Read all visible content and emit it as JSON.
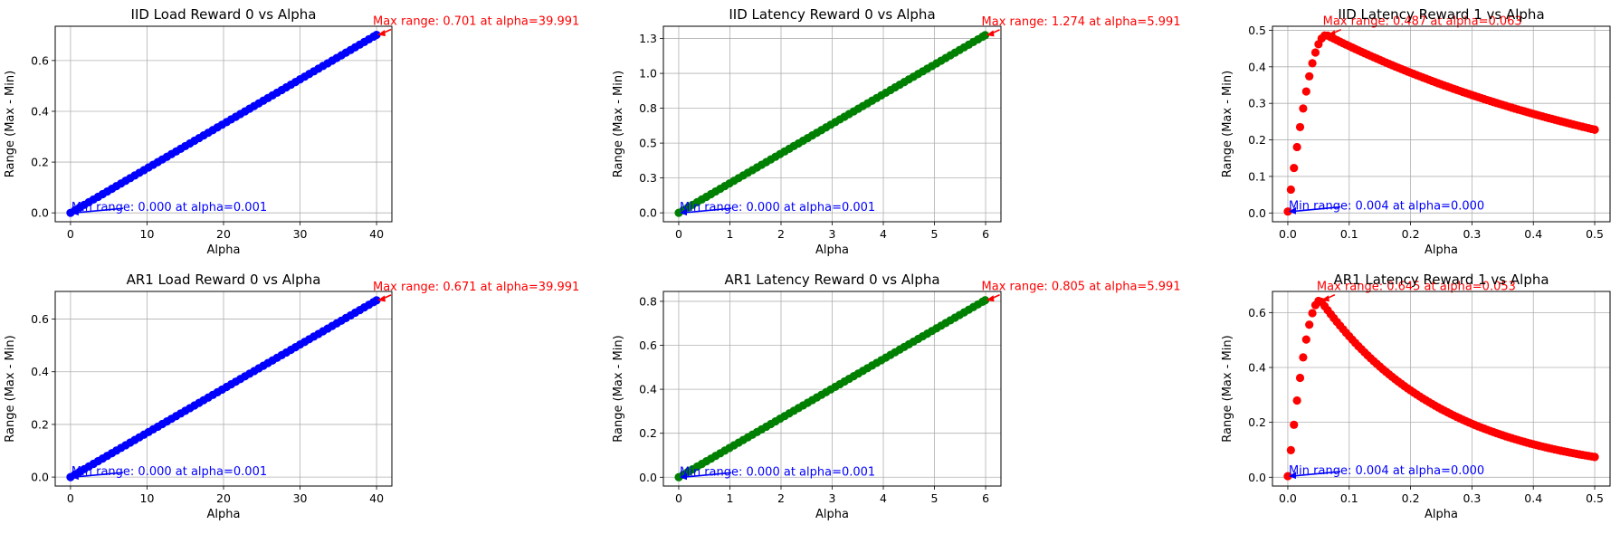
{
  "chart_data": [
    {
      "type": "scatter",
      "title": "IID Load Reward 0 vs Alpha",
      "xlabel": "Alpha",
      "ylabel": "Range (Max - Min)",
      "xlim": [
        -2,
        42
      ],
      "ylim": [
        -0.035,
        0.735
      ],
      "xticks": [
        0,
        10,
        20,
        30,
        40
      ],
      "yticks": [
        0.0,
        0.2,
        0.4,
        0.6
      ],
      "grid": true,
      "color": "#0000ff",
      "curve": "linear",
      "x_range": [
        0.001,
        39.991
      ],
      "y_end": 0.701,
      "point_step": 0.6,
      "max_annotation": {
        "text": "Max range: 0.701 at alpha=39.991",
        "x": 39.991,
        "y": 0.701,
        "color": "#ff0000"
      },
      "min_annotation": {
        "text": "Min range: 0.000 at alpha=0.001",
        "x": 0.001,
        "y": 0.0,
        "color": "#0000ff"
      }
    },
    {
      "type": "scatter",
      "title": "IID Latency Reward 0 vs Alpha",
      "xlabel": "Alpha",
      "ylabel": "Range (Max - Min)",
      "xlim": [
        -0.3,
        6.3
      ],
      "ylim": [
        -0.064,
        1.338
      ],
      "xticks": [
        0,
        1,
        2,
        3,
        4,
        5,
        6
      ],
      "yticks": [
        0.0,
        0.25,
        0.5,
        0.75,
        1.0,
        1.25
      ],
      "grid": true,
      "color": "#008000",
      "curve": "linear",
      "x_range": [
        0.001,
        5.991
      ],
      "y_end": 1.274,
      "point_step": 0.09,
      "max_annotation": {
        "text": "Max range: 1.274 at alpha=5.991",
        "x": 5.991,
        "y": 1.274,
        "color": "#ff0000"
      },
      "min_annotation": {
        "text": "Min range: 0.000 at alpha=0.001",
        "x": 0.001,
        "y": 0.0,
        "color": "#0000ff"
      }
    },
    {
      "type": "scatter",
      "title": "IID Latency Reward 1 vs Alpha",
      "xlabel": "Alpha",
      "ylabel": "Range (Max - Min)",
      "xlim": [
        -0.025,
        0.525
      ],
      "ylim": [
        -0.024,
        0.511
      ],
      "xticks": [
        0.0,
        0.1,
        0.2,
        0.3,
        0.4,
        0.5
      ],
      "yticks": [
        0.0,
        0.1,
        0.2,
        0.3,
        0.4,
        0.5
      ],
      "grid": true,
      "color": "#ff0000",
      "curve": "peak",
      "x_range": [
        0.0,
        0.5
      ],
      "y_min": 0.004,
      "y_peak": 0.487,
      "x_peak": 0.063,
      "y_end": 0.228,
      "point_step": 0.005,
      "max_annotation": {
        "text": "Max range: 0.487 at alpha=0.063",
        "x": 0.063,
        "y": 0.487,
        "color": "#ff0000"
      },
      "min_annotation": {
        "text": "Min range: 0.004 at alpha=0.000",
        "x": 0.0,
        "y": 0.004,
        "color": "#0000ff"
      }
    },
    {
      "type": "scatter",
      "title": "AR1 Load Reward 0 vs Alpha",
      "xlabel": "Alpha",
      "ylabel": "Range (Max - Min)",
      "xlim": [
        -2,
        42
      ],
      "ylim": [
        -0.034,
        0.705
      ],
      "xticks": [
        0,
        10,
        20,
        30,
        40
      ],
      "yticks": [
        0.0,
        0.2,
        0.4,
        0.6
      ],
      "grid": true,
      "color": "#0000ff",
      "curve": "linear",
      "x_range": [
        0.001,
        39.991
      ],
      "y_end": 0.671,
      "point_step": 0.6,
      "max_annotation": {
        "text": "Max range: 0.671 at alpha=39.991",
        "x": 39.991,
        "y": 0.671,
        "color": "#ff0000"
      },
      "min_annotation": {
        "text": "Min range: 0.000 at alpha=0.001",
        "x": 0.001,
        "y": 0.0,
        "color": "#0000ff"
      }
    },
    {
      "type": "scatter",
      "title": "AR1 Latency Reward 0 vs Alpha",
      "xlabel": "Alpha",
      "ylabel": "Range (Max - Min)",
      "xlim": [
        -0.3,
        6.3
      ],
      "ylim": [
        -0.04,
        0.845
      ],
      "xticks": [
        0,
        1,
        2,
        3,
        4,
        5,
        6
      ],
      "yticks": [
        0.0,
        0.2,
        0.4,
        0.6,
        0.8
      ],
      "grid": true,
      "color": "#008000",
      "curve": "linear",
      "x_range": [
        0.001,
        5.991
      ],
      "y_end": 0.805,
      "point_step": 0.09,
      "max_annotation": {
        "text": "Max range: 0.805 at alpha=5.991",
        "x": 5.991,
        "y": 0.805,
        "color": "#ff0000"
      },
      "min_annotation": {
        "text": "Min range: 0.000 at alpha=0.001",
        "x": 0.001,
        "y": 0.0,
        "color": "#0000ff"
      }
    },
    {
      "type": "scatter",
      "title": "AR1 Latency Reward 1 vs Alpha",
      "xlabel": "Alpha",
      "ylabel": "Range (Max - Min)",
      "xlim": [
        -0.025,
        0.525
      ],
      "ylim": [
        -0.032,
        0.677
      ],
      "xticks": [
        0.0,
        0.1,
        0.2,
        0.3,
        0.4,
        0.5
      ],
      "yticks": [
        0.0,
        0.2,
        0.4,
        0.6
      ],
      "grid": true,
      "color": "#ff0000",
      "curve": "peak",
      "x_range": [
        0.0,
        0.5
      ],
      "y_min": 0.004,
      "y_peak": 0.645,
      "x_peak": 0.053,
      "y_end": 0.074,
      "point_step": 0.005,
      "max_annotation": {
        "text": "Max range: 0.645 at alpha=0.053",
        "x": 0.053,
        "y": 0.645,
        "color": "#ff0000"
      },
      "min_annotation": {
        "text": "Min range: 0.004 at alpha=0.000",
        "x": 0.0,
        "y": 0.004,
        "color": "#0000ff"
      }
    }
  ]
}
